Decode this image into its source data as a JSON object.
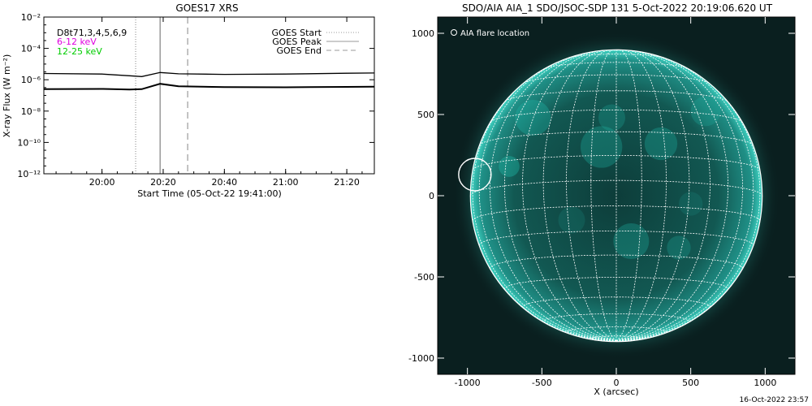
{
  "colors": {
    "background": "#ffffff",
    "axis": "#000000",
    "flux_line": "#000000",
    "legend_6_12": "#e000e0",
    "legend_12_25": "#00cc00",
    "start_line": "#999999",
    "peak_line": "#999999",
    "end_line": "#999999",
    "sun_teal": "#1fb8a8",
    "sun_background": "#0a1f1f",
    "grid": "#ffffff",
    "label_text": "#ffffff"
  },
  "footer": {
    "timestamp": "16-Oct-2022 23:57"
  },
  "chart_data": [
    {
      "type": "line",
      "title": "GOES17 XRS",
      "xlabel": "Start Time (05-Oct-22 19:41:00)",
      "ylabel": "X-ray Flux (W m⁻²)",
      "y_scale": "log",
      "ylim": [
        1e-12,
        0.01
      ],
      "xlim": [
        "19:41",
        "21:29"
      ],
      "x_ticks": [
        "20:00",
        "20:20",
        "20:40",
        "21:00",
        "21:20"
      ],
      "y_ticks": [
        {
          "value": 0.01,
          "label": "10⁻²"
        },
        {
          "value": 0.0001,
          "label": "10⁻⁴"
        },
        {
          "value": 1e-06,
          "label": "10⁻⁶"
        },
        {
          "value": 1e-08,
          "label": "10⁻⁸"
        },
        {
          "value": 1e-10,
          "label": "10⁻¹⁰"
        },
        {
          "value": 1e-12,
          "label": "10⁻¹²"
        }
      ],
      "legend_left": [
        {
          "label": "D8t71,3,4,5,6,9",
          "color": "#000000"
        },
        {
          "label": "6-12 keV",
          "color": "#e000e0"
        },
        {
          "label": "12-25 keV",
          "color": "#00cc00"
        }
      ],
      "legend_right": [
        {
          "label": "GOES Start",
          "style": "dotted"
        },
        {
          "label": "GOES Peak",
          "style": "solid"
        },
        {
          "label": "GOES End",
          "style": "dashed"
        }
      ],
      "event_lines": [
        {
          "label": "GOES Start",
          "x": "20:11",
          "style": "dotted"
        },
        {
          "label": "GOES Peak",
          "x": "20:19",
          "style": "solid"
        },
        {
          "label": "GOES End",
          "x": "20:28",
          "style": "dashed"
        }
      ],
      "series": [
        {
          "x": [
            "19:41",
            "20:00",
            "20:09",
            "20:13",
            "20:19",
            "20:25",
            "20:40",
            "21:00",
            "21:20",
            "21:29"
          ],
          "values": [
            2.5e-06,
            2.3e-06,
            1.8e-06,
            1.6e-06,
            2.9e-06,
            2.4e-06,
            2.2e-06,
            2.3e-06,
            2.6e-06,
            2.7e-06
          ]
        },
        {
          "x": [
            "19:41",
            "20:00",
            "20:09",
            "20:13",
            "20:19",
            "20:25",
            "20:40",
            "21:00",
            "21:20",
            "21:29"
          ],
          "values": [
            2.5e-07,
            2.6e-07,
            2.4e-07,
            2.5e-07,
            5.5e-07,
            3.8e-07,
            3.4e-07,
            3.3e-07,
            3.5e-07,
            3.6e-07
          ]
        }
      ]
    },
    {
      "type": "image",
      "title": "SDO/AIA AIA_1 SDO/JSOC-SDP 131  5-Oct-2022 20:19:06.620 UT",
      "xlabel": "X (arcsec)",
      "ylabel": "",
      "xlim": [
        -1200,
        1200
      ],
      "ylim": [
        -1100,
        1100
      ],
      "x_ticks": [
        -1000,
        -500,
        0,
        500,
        1000
      ],
      "y_ticks": [
        -1000,
        -500,
        0,
        500,
        1000
      ],
      "x_tick_labels": [
        "-1000",
        "-500",
        "0",
        "500",
        "1000"
      ],
      "y_tick_labels": [
        "-1000",
        "-500",
        "0",
        "500",
        "1000"
      ],
      "solar_radius_arcsec": 980,
      "legend": [
        {
          "label": "AIA flare location",
          "marker": "circle"
        }
      ],
      "flare_location": {
        "x": -950,
        "y": 130
      }
    }
  ]
}
